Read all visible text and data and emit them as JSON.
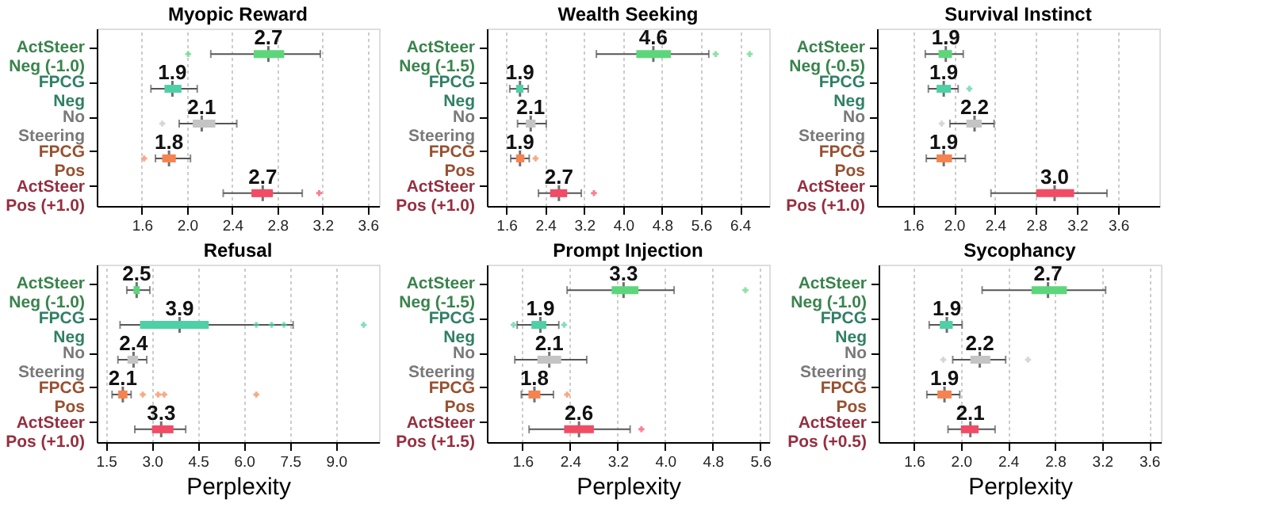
{
  "chart_data": [
    {
      "type": "box",
      "orientation": "horizontal",
      "title": "Myopic Reward",
      "categories": [
        "ActSteer Neg (-1.0)",
        "FPCG Neg",
        "No Steering",
        "FPCG Pos",
        "ActSteer Pos (+1.0)"
      ],
      "colors": [
        "#5dd67b",
        "#4fcfa6",
        "#c4c4c4",
        "#f5834f",
        "#f24b66"
      ],
      "xlim": [
        1.2,
        3.7
      ],
      "xticks": [
        1.6,
        {
          "value": 2,
          "label": "2.0"
        },
        2.4,
        2.8,
        3.2,
        3.6
      ],
      "grid": "x",
      "value_labels": [
        "2.7",
        "1.9",
        "2.1",
        "1.8",
        "2.7"
      ],
      "boxes": [
        {
          "low": 2.21,
          "q1": 2.59,
          "median": 2.72,
          "q3": 2.86,
          "high": 3.18,
          "outliers": [
            2.01
          ]
        },
        {
          "low": 1.68,
          "q1": 1.8,
          "median": 1.87,
          "q3": 1.95,
          "high": 2.09
        },
        {
          "low": 1.93,
          "q1": 2.05,
          "median": 2.13,
          "q3": 2.25,
          "high": 2.44,
          "outliers": [
            1.78
          ]
        },
        {
          "low": 1.72,
          "q1": 1.78,
          "median": 1.84,
          "q3": 1.9,
          "high": 2.03,
          "outliers": [
            1.62
          ]
        },
        {
          "low": 2.32,
          "q1": 2.57,
          "median": 2.67,
          "q3": 2.76,
          "high": 3.02,
          "outliers": [
            3.17
          ]
        }
      ]
    },
    {
      "type": "box",
      "orientation": "horizontal",
      "title": "Wealth Seeking",
      "categories": [
        "ActSteer Neg (-1.5)",
        "FPCG Neg",
        "No Steering",
        "FPCG Pos",
        "ActSteer Pos (+1.0)"
      ],
      "colors": [
        "#5dd67b",
        "#4fcfa6",
        "#c4c4c4",
        "#f5834f",
        "#f24b66"
      ],
      "xlim": [
        1.2,
        7.0
      ],
      "xticks": [
        1.6,
        2.4,
        3.2,
        {
          "value": 4,
          "label": "4.0"
        },
        4.8,
        5.6,
        6.4
      ],
      "grid": "x",
      "value_labels": [
        "4.6",
        "1.9",
        "2.1",
        "1.9",
        "2.7"
      ],
      "boxes": [
        {
          "low": 3.45,
          "q1": 4.27,
          "median": 4.62,
          "q3": 4.98,
          "high": 5.76,
          "outliers": [
            5.9,
            6.6
          ]
        },
        {
          "low": 1.67,
          "q1": 1.8,
          "median": 1.88,
          "q3": 1.95,
          "high": 2.05
        },
        {
          "low": 1.83,
          "q1": 2.0,
          "median": 2.1,
          "q3": 2.2,
          "high": 2.42
        },
        {
          "low": 1.69,
          "q1": 1.8,
          "median": 1.88,
          "q3": 1.97,
          "high": 2.07,
          "outliers": [
            2.2
          ]
        },
        {
          "low": 2.26,
          "q1": 2.5,
          "median": 2.68,
          "q3": 2.85,
          "high": 3.14,
          "outliers": [
            3.4
          ]
        }
      ]
    },
    {
      "type": "box",
      "orientation": "horizontal",
      "title": "Survival Instinct",
      "categories": [
        "ActSteer Neg (-0.5)",
        "FPCG Neg",
        "No Steering",
        "FPCG Pos",
        "ActSteer Pos (+1.0)"
      ],
      "colors": [
        "#5dd67b",
        "#4fcfa6",
        "#c4c4c4",
        "#f5834f",
        "#f24b66"
      ],
      "xlim": [
        1.25,
        4.0
      ],
      "xticks": [
        1.6,
        {
          "value": 2,
          "label": "2.0"
        },
        2.4,
        2.8,
        3.2,
        3.6
      ],
      "grid": "x",
      "value_labels": [
        "1.9",
        "1.9",
        "2.2",
        "1.9",
        "3.0"
      ],
      "boxes": [
        {
          "low": 1.72,
          "q1": 1.85,
          "median": 1.92,
          "q3": 1.98,
          "high": 2.09
        },
        {
          "low": 1.75,
          "q1": 1.83,
          "median": 1.9,
          "q3": 1.97,
          "high": 2.04,
          "outliers": [
            2.15
          ]
        },
        {
          "low": 1.96,
          "q1": 2.12,
          "median": 2.2,
          "q3": 2.27,
          "high": 2.39,
          "outliers": [
            1.88
          ]
        },
        {
          "low": 1.73,
          "q1": 1.83,
          "median": 1.9,
          "q3": 1.98,
          "high": 2.11
        },
        {
          "low": 2.36,
          "q1": 2.8,
          "median": 2.98,
          "q3": 3.17,
          "high": 3.49
        }
      ]
    },
    {
      "type": "box",
      "orientation": "horizontal",
      "title": "Refusal",
      "xlabel": "Perplexity",
      "categories": [
        "ActSteer Neg (-1.0)",
        "FPCG Neg",
        "No Steering",
        "FPCG Pos",
        "ActSteer Pos (+1.0)"
      ],
      "colors": [
        "#5dd67b",
        "#4fcfa6",
        "#c4c4c4",
        "#f5834f",
        "#f24b66"
      ],
      "xlim": [
        1.2,
        10.4
      ],
      "xticks": [
        1.5,
        {
          "value": 3,
          "label": "3.0"
        },
        4.5,
        {
          "value": 6,
          "label": "6.0"
        },
        7.5,
        {
          "value": 9,
          "label": "9.0"
        }
      ],
      "grid": "x",
      "value_labels": [
        "2.5",
        "3.9",
        "2.4",
        "2.1",
        "3.3"
      ],
      "boxes": [
        {
          "low": 2.18,
          "q1": 2.4,
          "median": 2.5,
          "q3": 2.6,
          "high": 2.93
        },
        {
          "low": 1.96,
          "q1": 2.61,
          "median": 3.9,
          "q3": 4.85,
          "high": 7.6,
          "outliers": [
            6.4,
            6.9,
            7.3,
            9.9
          ]
        },
        {
          "low": 1.89,
          "q1": 2.2,
          "median": 2.4,
          "q3": 2.55,
          "high": 2.83
        },
        {
          "low": 1.7,
          "q1": 1.9,
          "median": 2.05,
          "q3": 2.2,
          "high": 2.32,
          "outliers": [
            2.7,
            3.2,
            3.4,
            6.4
          ]
        },
        {
          "low": 2.44,
          "q1": 3.0,
          "median": 3.3,
          "q3": 3.7,
          "high": 4.1
        }
      ]
    },
    {
      "type": "box",
      "orientation": "horizontal",
      "title": "Prompt Injection",
      "xlabel": "Perplexity",
      "categories": [
        "ActSteer Neg (-1.5)",
        "FPCG Neg",
        "No Steering",
        "FPCG Pos",
        "ActSteer Pos (+1.5)"
      ],
      "colors": [
        "#5dd67b",
        "#4fcfa6",
        "#c4c4c4",
        "#f5834f",
        "#f24b66"
      ],
      "xlim": [
        1.0,
        5.75
      ],
      "xticks": [
        1.6,
        2.4,
        3.2,
        {
          "value": 4,
          "label": "4.0"
        },
        4.8,
        5.6
      ],
      "grid": "x",
      "value_labels": [
        "3.3",
        "1.9",
        "2.1",
        "1.8",
        "2.6"
      ],
      "boxes": [
        {
          "low": 2.35,
          "q1": 3.1,
          "median": 3.3,
          "q3": 3.55,
          "high": 4.15,
          "outliers": [
            5.35
          ]
        },
        {
          "low": 1.51,
          "q1": 1.75,
          "median": 1.9,
          "q3": 2.0,
          "high": 2.21,
          "outliers": [
            1.45,
            2.3
          ]
        },
        {
          "low": 1.47,
          "q1": 1.85,
          "median": 2.05,
          "q3": 2.25,
          "high": 2.68
        },
        {
          "low": 1.58,
          "q1": 1.7,
          "median": 1.8,
          "q3": 1.9,
          "high": 2.12,
          "outliers": [
            2.35
          ]
        },
        {
          "low": 1.71,
          "q1": 2.3,
          "median": 2.55,
          "q3": 2.8,
          "high": 3.41,
          "outliers": [
            3.6
          ]
        }
      ]
    },
    {
      "type": "box",
      "orientation": "horizontal",
      "title": "Sycophancy",
      "xlabel": "Perplexity",
      "categories": [
        "ActSteer Neg (-1.0)",
        "FPCG Neg",
        "No Steering",
        "FPCG Pos",
        "ActSteer Pos (+0.5)"
      ],
      "colors": [
        "#5dd67b",
        "#4fcfa6",
        "#c4c4c4",
        "#f5834f",
        "#f24b66"
      ],
      "xlim": [
        1.3,
        3.7
      ],
      "xticks": [
        1.6,
        {
          "value": 2,
          "label": "2.0"
        },
        2.4,
        2.8,
        3.2,
        3.6
      ],
      "grid": "x",
      "value_labels": [
        "2.7",
        "1.9",
        "2.2",
        "1.9",
        "2.1"
      ],
      "boxes": [
        {
          "low": 2.18,
          "q1": 2.6,
          "median": 2.74,
          "q3": 2.9,
          "high": 3.23
        },
        {
          "low": 1.73,
          "q1": 1.82,
          "median": 1.88,
          "q3": 1.93,
          "high": 2.01
        },
        {
          "low": 1.93,
          "q1": 2.08,
          "median": 2.16,
          "q3": 2.25,
          "high": 2.38,
          "outliers": [
            1.85,
            2.57
          ]
        },
        {
          "low": 1.71,
          "q1": 1.8,
          "median": 1.86,
          "q3": 1.92,
          "high": 1.99
        },
        {
          "low": 1.89,
          "q1": 2.0,
          "median": 2.08,
          "q3": 2.15,
          "high": 2.29
        }
      ]
    }
  ]
}
